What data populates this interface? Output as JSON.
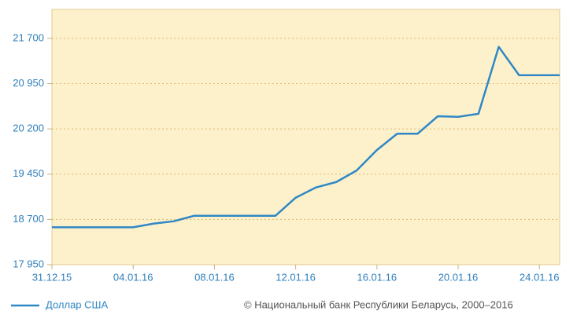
{
  "chart_data": {
    "type": "line",
    "x": [
      "31.12.15",
      "01.01.16",
      "02.01.16",
      "03.01.16",
      "04.01.16",
      "05.01.16",
      "06.01.16",
      "07.01.16",
      "08.01.16",
      "09.01.16",
      "10.01.16",
      "11.01.16",
      "12.01.16",
      "13.01.16",
      "14.01.16",
      "15.01.16",
      "16.01.16",
      "17.01.16",
      "18.01.16",
      "19.01.16",
      "20.01.16",
      "21.01.16",
      "22.01.16",
      "23.01.16",
      "24.01.16",
      "25.01.16"
    ],
    "series": [
      {
        "name": "Доллар США",
        "color": "#2f88c4",
        "values": [
          18570,
          18570,
          18570,
          18570,
          18570,
          18630,
          18670,
          18760,
          18760,
          18760,
          18760,
          18760,
          19060,
          19230,
          19320,
          19510,
          19850,
          20120,
          20120,
          20410,
          20400,
          20450,
          21560,
          21090,
          21090,
          21090
        ]
      }
    ],
    "xticks": [
      "31.12.15",
      "04.01.16",
      "08.01.16",
      "12.01.16",
      "16.01.16",
      "20.01.16",
      "24.01.16"
    ],
    "ylim": [
      17950,
      22180
    ],
    "yticks": [
      {
        "value": 17950,
        "label": "17 950"
      },
      {
        "value": 18700,
        "label": "18 700"
      },
      {
        "value": 19450,
        "label": "19 450"
      },
      {
        "value": 20200,
        "label": "20 200"
      },
      {
        "value": 20950,
        "label": "20 950"
      },
      {
        "value": 21700,
        "label": "21 700"
      }
    ],
    "grid": true,
    "source": "© Национальный банк Республики Беларусь, 2000–2016"
  }
}
